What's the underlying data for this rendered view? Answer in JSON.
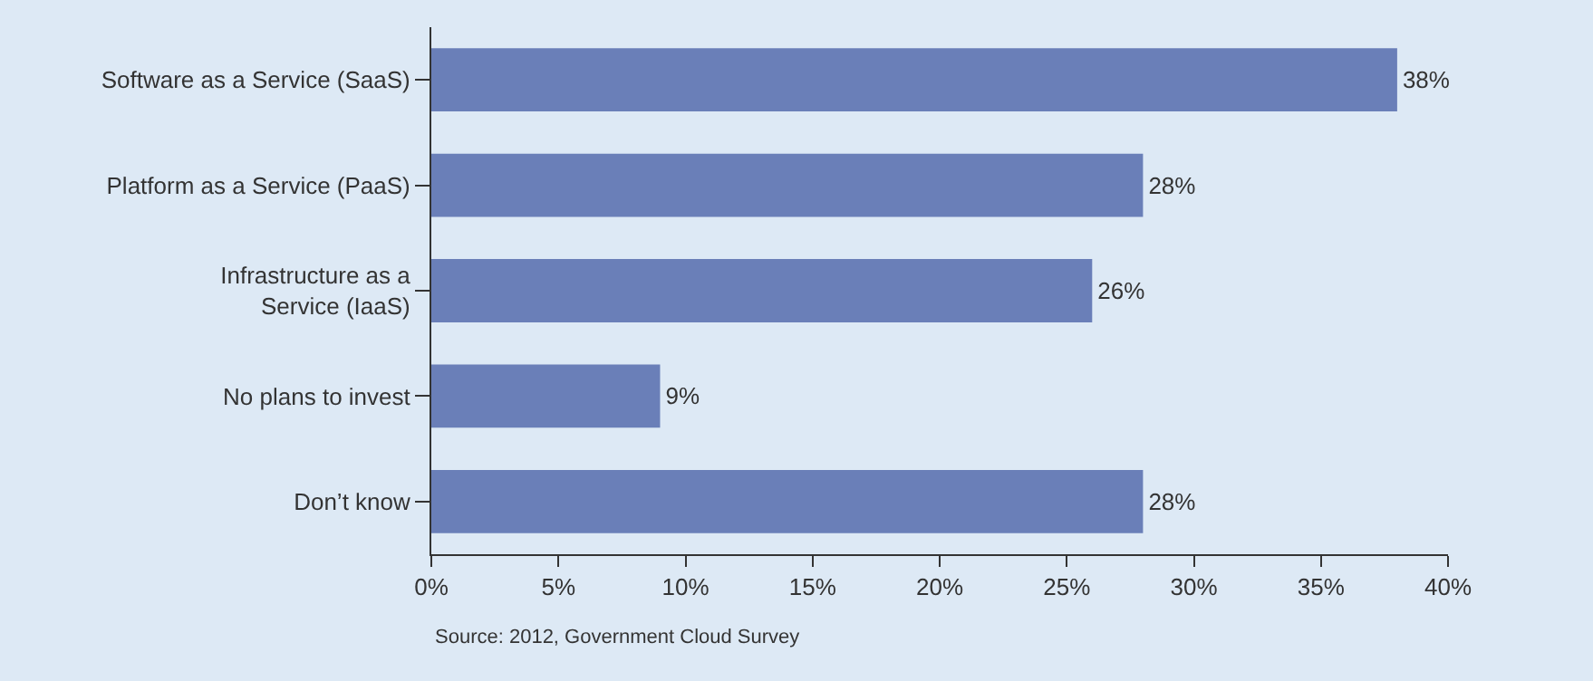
{
  "chart_data": {
    "type": "bar",
    "orientation": "horizontal",
    "categories": [
      "Software as a Service (SaaS)",
      "Platform as a Service (PaaS)",
      "Infrastructure as a Service (IaaS)",
      "No plans to invest",
      "Don’t know"
    ],
    "values": [
      38,
      28,
      26,
      9,
      28
    ],
    "value_labels": [
      "38%",
      "28%",
      "26%",
      "9%",
      "28%"
    ],
    "color": "#6a7fb8",
    "xlim": [
      0,
      40
    ],
    "xticks": [
      {
        "value": 0,
        "label": "0%"
      },
      {
        "value": 5,
        "label": "5%"
      },
      {
        "value": 10,
        "label": "10%"
      },
      {
        "value": 15,
        "label": "15%"
      },
      {
        "value": 20,
        "label": "20%"
      },
      {
        "value": 25,
        "label": "25%"
      },
      {
        "value": 30,
        "label": "30%"
      },
      {
        "value": 35,
        "label": "35%"
      },
      {
        "value": 40,
        "label": "40%"
      }
    ],
    "grid": false,
    "annotations": [
      "Source: 2012, Government Cloud Survey"
    ]
  }
}
